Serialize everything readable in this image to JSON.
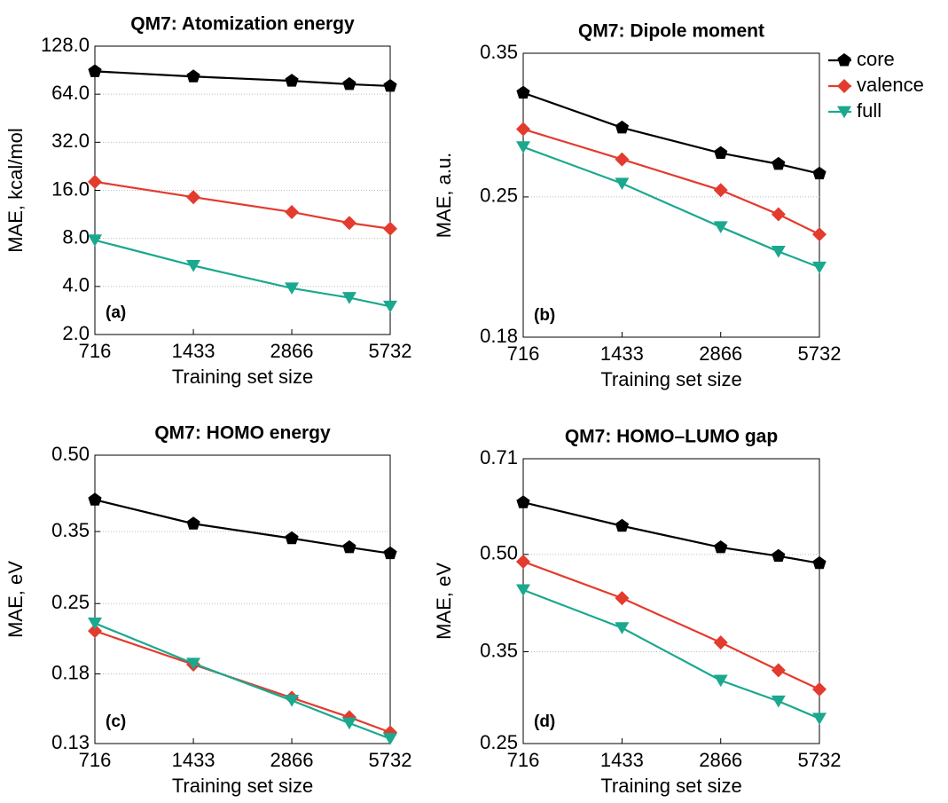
{
  "chart_data": [
    {
      "type": "line",
      "title": "QM7: Atomization energy",
      "panel_label": "(a)",
      "xlabel": "Training set size",
      "ylabel": "MAE, kcal/mol",
      "xscale": "log",
      "yscale": "log",
      "grid": true,
      "x": [
        716,
        1433,
        2866,
        4299,
        5732
      ],
      "xlim": [
        716,
        5732
      ],
      "xticks": [
        716,
        1433,
        2866,
        5732
      ],
      "ylim": [
        2,
        128
      ],
      "yticks": [
        {
          "value": 2,
          "label": "2.0"
        },
        {
          "value": 4,
          "label": "4.0"
        },
        {
          "value": 8,
          "label": "8.0"
        },
        {
          "value": 16,
          "label": "16.0"
        },
        {
          "value": 32,
          "label": "32.0"
        },
        {
          "value": 64,
          "label": "64.0"
        },
        {
          "value": 128,
          "label": "128.0"
        }
      ],
      "series": [
        {
          "color": "#000000",
          "marker": "pentagon",
          "values": [
            89,
            82.6,
            77.6,
            73.9,
            72.0
          ]
        },
        {
          "color": "#e33b2e",
          "marker": "diamond",
          "values": [
            18.1,
            14.5,
            11.7,
            10.0,
            9.2
          ]
        },
        {
          "color": "#1aa88e",
          "marker": "triangle-down",
          "values": [
            7.8,
            5.4,
            3.9,
            3.4,
            3.0
          ]
        }
      ]
    },
    {
      "type": "line",
      "title": "QM7: Dipole moment",
      "panel_label": "(b)",
      "xlabel": "Training set size",
      "ylabel": "MAE, a.u.",
      "xscale": "log",
      "yscale": "log",
      "grid": true,
      "legend": "outside-right",
      "x": [
        716,
        1433,
        2866,
        4299,
        5732
      ],
      "xlim": [
        716,
        5732
      ],
      "xticks": [
        716,
        1433,
        2866,
        5732
      ],
      "ylim": [
        0.18,
        0.35
      ],
      "yticks": [
        0.18,
        0.25,
        0.35
      ],
      "series": [
        {
          "name": "core",
          "color": "#000000",
          "marker": "pentagon",
          "values": [
            0.319,
            0.294,
            0.277,
            0.27,
            0.264
          ]
        },
        {
          "name": "valence",
          "color": "#e33b2e",
          "marker": "diamond",
          "values": [
            0.293,
            0.273,
            0.254,
            0.24,
            0.229
          ]
        },
        {
          "name": "full",
          "color": "#1aa88e",
          "marker": "triangle-down",
          "values": [
            0.281,
            0.258,
            0.233,
            0.22,
            0.212
          ]
        }
      ]
    },
    {
      "type": "line",
      "title": "QM7: HOMO energy",
      "panel_label": "(c)",
      "xlabel": "Training set size",
      "ylabel": "MAE, eV",
      "xscale": "log",
      "yscale": "log",
      "grid": true,
      "x": [
        716,
        1433,
        2866,
        4299,
        5732
      ],
      "xlim": [
        716,
        5732
      ],
      "xticks": [
        716,
        1433,
        2866,
        5732
      ],
      "ylim": [
        0.13,
        0.5
      ],
      "yticks": [
        0.13,
        0.18,
        0.25,
        0.35,
        {
          "value": 0.5,
          "label": "0.50"
        }
      ],
      "series": [
        {
          "color": "#000000",
          "marker": "pentagon",
          "values": [
            0.406,
            0.363,
            0.339,
            0.325,
            0.316
          ]
        },
        {
          "color": "#e33b2e",
          "marker": "diamond",
          "values": [
            0.22,
            0.188,
            0.161,
            0.147,
            0.137
          ]
        },
        {
          "color": "#1aa88e",
          "marker": "triangle-down",
          "values": [
            0.228,
            0.189,
            0.159,
            0.143,
            0.133
          ]
        }
      ]
    },
    {
      "type": "line",
      "title": "QM7: HOMO–LUMO gap",
      "panel_label": "(d)",
      "xlabel": "Training set size",
      "ylabel": "MAE, eV",
      "xscale": "log",
      "yscale": "log",
      "grid": true,
      "x": [
        716,
        1433,
        2866,
        4299,
        5732
      ],
      "xlim": [
        716,
        5732
      ],
      "xticks": [
        716,
        1433,
        2866,
        5732
      ],
      "ylim": [
        0.25,
        0.71
      ],
      "yticks": [
        0.25,
        0.35,
        {
          "value": 0.5,
          "label": "0.50"
        },
        0.71
      ],
      "series": [
        {
          "color": "#000000",
          "marker": "pentagon",
          "values": [
            0.605,
            0.555,
            0.513,
            0.497,
            0.484
          ]
        },
        {
          "color": "#e33b2e",
          "marker": "diamond",
          "values": [
            0.487,
            0.426,
            0.362,
            0.327,
            0.305
          ]
        },
        {
          "color": "#1aa88e",
          "marker": "triangle-down",
          "values": [
            0.439,
            0.382,
            0.315,
            0.292,
            0.274
          ]
        }
      ]
    }
  ]
}
